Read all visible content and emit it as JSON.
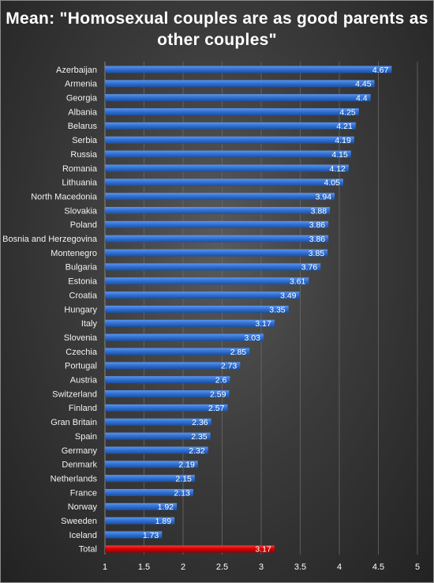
{
  "chart_data": {
    "type": "bar",
    "orientation": "horizontal",
    "title": "Mean: \"Homosexual couples are as good parents as other couples\"",
    "categories": [
      "Azerbaijan",
      "Armenia",
      "Georgia",
      "Albania",
      "Belarus",
      "Serbia",
      "Russia",
      "Romania",
      "Lithuania",
      "North Macedonia",
      "Slovakia",
      "Poland",
      "Bosnia and Herzegovina",
      "Montenegro",
      "Bulgaria",
      "Estonia",
      "Croatia",
      "Hungary",
      "Italy",
      "Slovenia",
      "Czechia",
      "Portugal",
      "Austria",
      "Switzerland",
      "Finland",
      "Gran Britain",
      "Spain",
      "Germany",
      "Denmark",
      "Netherlands",
      "France",
      "Norway",
      "Sweeden",
      "Iceland",
      "Total"
    ],
    "values": [
      4.67,
      4.45,
      4.4,
      4.25,
      4.21,
      4.19,
      4.15,
      4.12,
      4.05,
      3.94,
      3.88,
      3.86,
      3.86,
      3.85,
      3.76,
      3.61,
      3.49,
      3.35,
      3.17,
      3.03,
      2.85,
      2.73,
      2.6,
      2.59,
      2.57,
      2.36,
      2.35,
      2.32,
      2.19,
      2.15,
      2.13,
      1.92,
      1.89,
      1.73,
      3.17
    ],
    "value_labels": [
      "4.67",
      "4.45",
      "4.4",
      "4.25",
      "4.21",
      "4.19",
      "4.15",
      "4.12",
      "4.05",
      "3.94",
      "3.88",
      "3.86",
      "3.86",
      "3.85",
      "3.76",
      "3.61",
      "3.49",
      "3.35",
      "3.17",
      "3.03",
      "2.85",
      "2.73",
      "2.6",
      "2.59",
      "2.57",
      "2.36",
      "2.35",
      "2.32",
      "2.19",
      "2.15",
      "2.13",
      "1.92",
      "1.89",
      "1.73",
      "3.17"
    ],
    "xlim": [
      1,
      5
    ],
    "xticks": [
      "1",
      "1.5",
      "2",
      "2.5",
      "3",
      "3.5",
      "4",
      "4.5",
      "5"
    ],
    "xlabel": "",
    "ylabel": "",
    "grid": true,
    "legend": "none",
    "colors": {
      "bar": "#2f6fd1",
      "highlight": "#d40000",
      "highlight_category": "Total"
    }
  }
}
